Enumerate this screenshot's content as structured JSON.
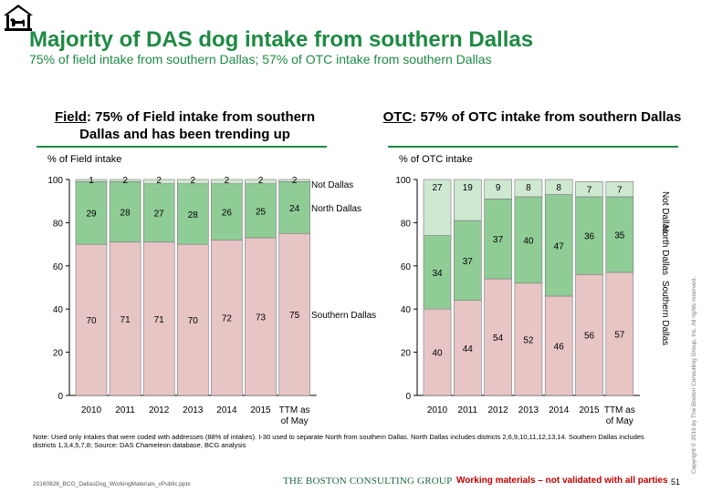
{
  "header": {
    "title": "Majority of DAS dog intake from southern Dallas",
    "subtitle": "75% of field intake from southern Dallas; 57% of OTC intake from southern Dallas",
    "logo_icon": "house-dog-logo-icon"
  },
  "colors": {
    "accent": "#1e8a43",
    "southern": "#e8c5c5",
    "north": "#8fcc96",
    "not_dallas": "#cfe8d1",
    "bar_border": "#7a7a7a",
    "warning": "#c00000"
  },
  "field_panel": {
    "title_keyword": "Field",
    "title_rest": ": 75% of Field intake from southern Dallas and has been trending up",
    "ylabel": "% of Field intake"
  },
  "otc_panel": {
    "title_keyword": "OTC",
    "title_rest": ": 57% of OTC intake from southern Dallas",
    "ylabel": "% of OTC intake"
  },
  "chart_data": [
    {
      "type": "bar",
      "stacked": true,
      "categories": [
        "2010",
        "2011",
        "2012",
        "2013",
        "2014",
        "2015",
        "TTM as of May 2016"
      ],
      "series": [
        {
          "name": "Southern Dallas",
          "values": [
            70,
            71,
            71,
            70,
            72,
            73,
            75
          ]
        },
        {
          "name": "North Dallas",
          "values": [
            29,
            28,
            27,
            28,
            26,
            25,
            24
          ]
        },
        {
          "name": "Not Dallas",
          "values": [
            1,
            2,
            2,
            2,
            2,
            2,
            2
          ]
        }
      ],
      "ylim": [
        0,
        100
      ],
      "yticks": [
        0,
        20,
        40,
        60,
        80,
        100
      ],
      "legend": "right"
    },
    {
      "type": "bar",
      "stacked": true,
      "categories": [
        "2010",
        "2011",
        "2012",
        "2013",
        "2014",
        "2015",
        "TTM as of May 2016"
      ],
      "series": [
        {
          "name": "Southern Dallas",
          "values": [
            40,
            44,
            54,
            52,
            46,
            56,
            57
          ]
        },
        {
          "name": "North Dallas",
          "values": [
            34,
            37,
            37,
            40,
            47,
            36,
            35
          ]
        },
        {
          "name": "Not Dallas",
          "values": [
            27,
            19,
            9,
            8,
            8,
            7,
            7
          ]
        }
      ],
      "ylim": [
        0,
        100
      ],
      "yticks": [
        0,
        20,
        40,
        60,
        80,
        100
      ],
      "legend": "right-vertical"
    }
  ],
  "footer": {
    "note": "Note: Used only intakes that were coded with addresses (88% of intakes). I-30 used to separate North from southern Dallas. North Dallas includes districts 2,6,9,10,11,12,13,14. Southern Dallas includes districts 1,3,4,5,7,8; Source: DAS Chameleon database, BCG analysis",
    "filename": "20160826_BCG_DallasDog_WorkingMaterials_vPublic.pptx",
    "company": "THE BOSTON CONSULTING GROUP",
    "working": "Working materials – not validated with all parties",
    "page_number": "51",
    "copyright": "Copyright © 2016 by The Boston Consulting Group, Inc. All rights reserved."
  }
}
